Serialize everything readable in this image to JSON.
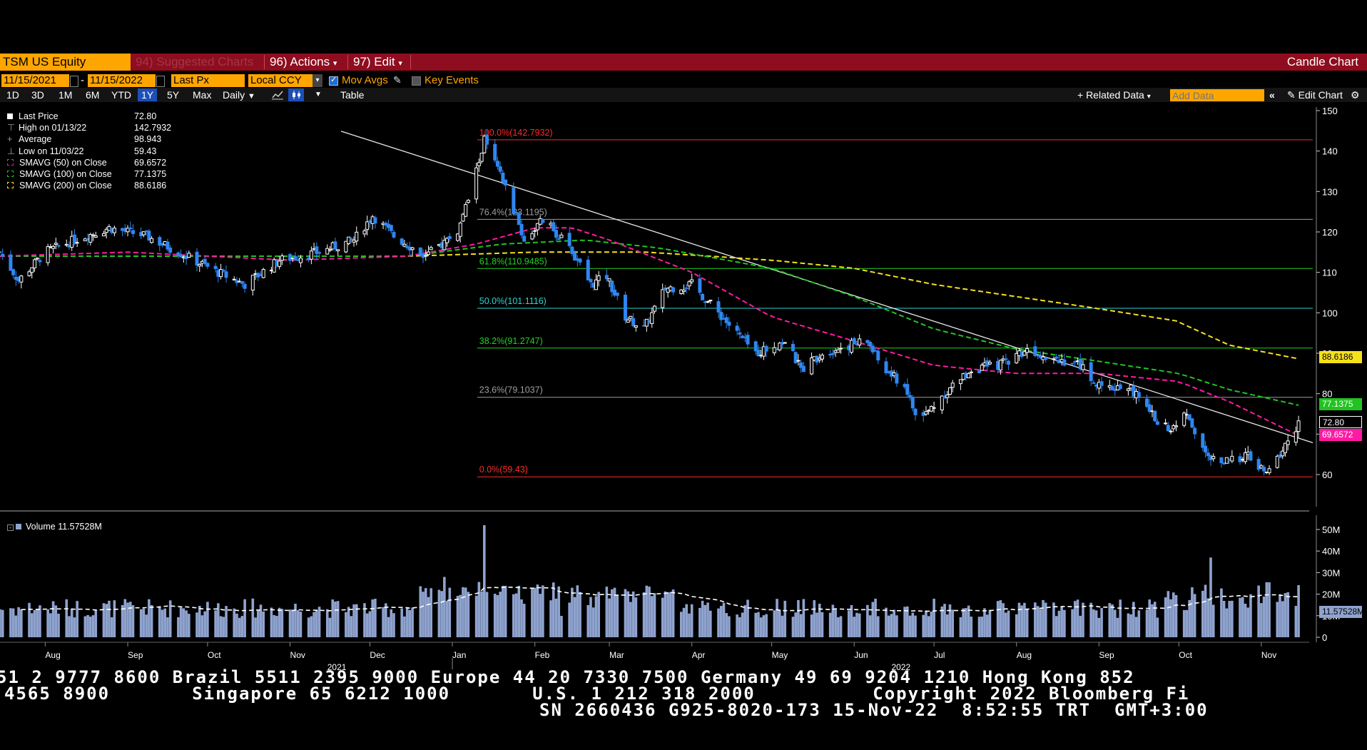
{
  "header": {
    "ticker": "TSM US Equity",
    "suggested_charts": "94) Suggested Charts",
    "actions": "96) Actions",
    "edit": "97) Edit",
    "chart_type": "Candle Chart"
  },
  "controls": {
    "start_date": "11/15/2021",
    "end_date": "11/15/2022",
    "price_field": "Last Px",
    "currency": "Local CCY",
    "mov_avgs_label": "Mov Avgs",
    "mov_avgs_checked": true,
    "key_events_label": "Key Events",
    "key_events_checked": false,
    "periods": [
      "1D",
      "3D",
      "1M",
      "6M",
      "YTD",
      "1Y",
      "5Y",
      "Max"
    ],
    "selected_period": "1Y",
    "frequency": "Daily",
    "table_label": "Table",
    "related_data": "+ Related Data",
    "add_data_placeholder": "Add Data",
    "edit_chart": "Edit Chart"
  },
  "legend": [
    {
      "label": "Last Price",
      "value": "72.80"
    },
    {
      "label": "High on 01/13/22",
      "value": "142.7932"
    },
    {
      "label": "Average",
      "value": "98.943"
    },
    {
      "label": "Low on 11/03/22",
      "value": "59.43"
    },
    {
      "label": "SMAVG (50)  on Close",
      "value": "69.6572"
    },
    {
      "label": "SMAVG (100)  on Close",
      "value": "77.1375"
    },
    {
      "label": "SMAVG (200)  on Close",
      "value": "88.6186"
    }
  ],
  "volume_legend": {
    "label": "Volume",
    "value": "11.57528M"
  },
  "price_labels": {
    "last": "72.80",
    "sma50": "69.6572",
    "sma100": "77.1375",
    "sma200": "88.6186",
    "volume": "11.57528M"
  },
  "colors": {
    "sma50": "#ff1aa3",
    "sma100": "#21c321",
    "sma200": "#f5e01c",
    "header": "#8e0d1e",
    "accent": "#ffa500",
    "up": "#ffffff",
    "down": "#2f86f0"
  },
  "footer": {
    "line1": "51 2 9777 8600 Brazil 5511 2395 9000 Europe 44 20 7330 7500 Germany 49 69 9204 1210 Hong Kong 852",
    "line2": "4565 8900       Singapore 65 6212 1000       U.S. 1 212 318 2000          Copyright 2022 Bloomberg Fi",
    "line3": "SN 2660436 G925-8020-173 15-Nov-22  8:52:55 TRT  GMT+3:00"
  },
  "chart_data": {
    "type": "candlestick",
    "title": "TSM US Equity",
    "y_ticks": [
      60,
      70,
      80,
      90,
      100,
      110,
      120,
      130,
      140,
      150
    ],
    "ylim": [
      50,
      152
    ],
    "volume_ticks": [
      "0",
      "10M",
      "20M",
      "30M",
      "40M",
      "50M"
    ],
    "x_months": [
      "Aug",
      "Sep",
      "Oct",
      "Nov",
      "Dec",
      "Jan",
      "Feb",
      "Mar",
      "Apr",
      "May",
      "Jun",
      "Jul",
      "Aug",
      "Sep",
      "Oct",
      "Nov"
    ],
    "x_years": [
      "2021",
      "2022"
    ],
    "fibonacci": [
      {
        "label": "100.0%(142.7932)",
        "value": 142.7932,
        "color": "#ff2a2a"
      },
      {
        "label": "76.4%(123.1195)",
        "value": 123.1195,
        "color": "#9e9e9e"
      },
      {
        "label": "61.8%(110.9485)",
        "value": 110.9485,
        "color": "#21d321"
      },
      {
        "label": "50.0%(101.1116)",
        "value": 101.1116,
        "color": "#2ad4d4"
      },
      {
        "label": "38.2%(91.2747)",
        "value": 91.2747,
        "color": "#21d321"
      },
      {
        "label": "23.6%(79.1037)",
        "value": 79.1037,
        "color": "#9e9e9e"
      },
      {
        "label": "0.0%(59.43)",
        "value": 59.43,
        "color": "#ff2a2a"
      }
    ],
    "trendline": {
      "from": "2021-11-15",
      "from_value": 146,
      "to": "2022-11-15",
      "to_value": 69
    },
    "anchors": [
      [
        "2021-07-15",
        115
      ],
      [
        "2021-07-22",
        108
      ],
      [
        "2021-08-01",
        115
      ],
      [
        "2021-08-12",
        118
      ],
      [
        "2021-08-25",
        121
      ],
      [
        "2021-09-08",
        119
      ],
      [
        "2021-09-20",
        115
      ],
      [
        "2021-10-05",
        110
      ],
      [
        "2021-10-15",
        107
      ],
      [
        "2021-10-28",
        113
      ],
      [
        "2021-11-12",
        115
      ],
      [
        "2021-11-25",
        118
      ],
      [
        "2021-12-02",
        124
      ],
      [
        "2021-12-10",
        119
      ],
      [
        "2021-12-22",
        114
      ],
      [
        "2022-01-03",
        120
      ],
      [
        "2022-01-08",
        130
      ],
      [
        "2022-01-13",
        142.8
      ],
      [
        "2022-01-21",
        131
      ],
      [
        "2022-01-28",
        118
      ],
      [
        "2022-02-04",
        123
      ],
      [
        "2022-02-10",
        119
      ],
      [
        "2022-02-17",
        113
      ],
      [
        "2022-02-22",
        107
      ],
      [
        "2022-02-28",
        109
      ],
      [
        "2022-03-07",
        99
      ],
      [
        "2022-03-14",
        96
      ],
      [
        "2022-03-22",
        106
      ],
      [
        "2022-04-01",
        107
      ],
      [
        "2022-04-11",
        100
      ],
      [
        "2022-04-15",
        97
      ],
      [
        "2022-04-25",
        90
      ],
      [
        "2022-05-06",
        93
      ],
      [
        "2022-05-12",
        86
      ],
      [
        "2022-05-20",
        90
      ],
      [
        "2022-05-30",
        92
      ],
      [
        "2022-06-06",
        93
      ],
      [
        "2022-06-12",
        86
      ],
      [
        "2022-06-20",
        82
      ],
      [
        "2022-06-25",
        73
      ],
      [
        "2022-07-05",
        80
      ],
      [
        "2022-07-15",
        86
      ],
      [
        "2022-07-25",
        87
      ],
      [
        "2022-08-05",
        91
      ],
      [
        "2022-08-15",
        89
      ],
      [
        "2022-08-25",
        87
      ],
      [
        "2022-09-02",
        81
      ],
      [
        "2022-09-12",
        82
      ],
      [
        "2022-09-22",
        74
      ],
      [
        "2022-09-28",
        71
      ],
      [
        "2022-10-04",
        75
      ],
      [
        "2022-10-12",
        64
      ],
      [
        "2022-10-20",
        63
      ],
      [
        "2022-10-26",
        65
      ],
      [
        "2022-11-03",
        60
      ],
      [
        "2022-11-09",
        66
      ],
      [
        "2022-11-15",
        72.8
      ]
    ],
    "sma50": [
      [
        "2021-07-15",
        114
      ],
      [
        "2021-09-01",
        115
      ],
      [
        "2021-11-01",
        113
      ],
      [
        "2021-12-15",
        114
      ],
      [
        "2022-01-10",
        117
      ],
      [
        "2022-02-01",
        121
      ],
      [
        "2022-02-15",
        121
      ],
      [
        "2022-03-01",
        118
      ],
      [
        "2022-04-01",
        110
      ],
      [
        "2022-05-01",
        99
      ],
      [
        "2022-06-01",
        93
      ],
      [
        "2022-07-01",
        87
      ],
      [
        "2022-08-01",
        85
      ],
      [
        "2022-09-01",
        85
      ],
      [
        "2022-10-01",
        83
      ],
      [
        "2022-10-20",
        78
      ],
      [
        "2022-11-15",
        69.66
      ]
    ],
    "sma100": [
      [
        "2021-07-15",
        114
      ],
      [
        "2021-10-15",
        114
      ],
      [
        "2021-12-15",
        114
      ],
      [
        "2022-01-20",
        117
      ],
      [
        "2022-02-20",
        118
      ],
      [
        "2022-03-20",
        116
      ],
      [
        "2022-05-01",
        111
      ],
      [
        "2022-06-01",
        104
      ],
      [
        "2022-07-01",
        96
      ],
      [
        "2022-08-01",
        91
      ],
      [
        "2022-09-01",
        88
      ],
      [
        "2022-10-01",
        85
      ],
      [
        "2022-10-20",
        81
      ],
      [
        "2022-11-15",
        77.14
      ]
    ],
    "sma200": [
      [
        "2021-07-15",
        114
      ],
      [
        "2021-12-15",
        114
      ],
      [
        "2022-02-01",
        115
      ],
      [
        "2022-03-15",
        115
      ],
      [
        "2022-05-01",
        113
      ],
      [
        "2022-06-01",
        111
      ],
      [
        "2022-07-01",
        107
      ],
      [
        "2022-08-01",
        104
      ],
      [
        "2022-09-01",
        101
      ],
      [
        "2022-09-30",
        98
      ],
      [
        "2022-10-20",
        92
      ],
      [
        "2022-11-15",
        88.62
      ]
    ],
    "volume_spikes": [
      [
        "2022-01-13",
        52
      ],
      [
        "2021-12-29",
        28
      ],
      [
        "2022-10-13",
        37
      ],
      [
        "2022-10-31",
        24
      ]
    ]
  }
}
